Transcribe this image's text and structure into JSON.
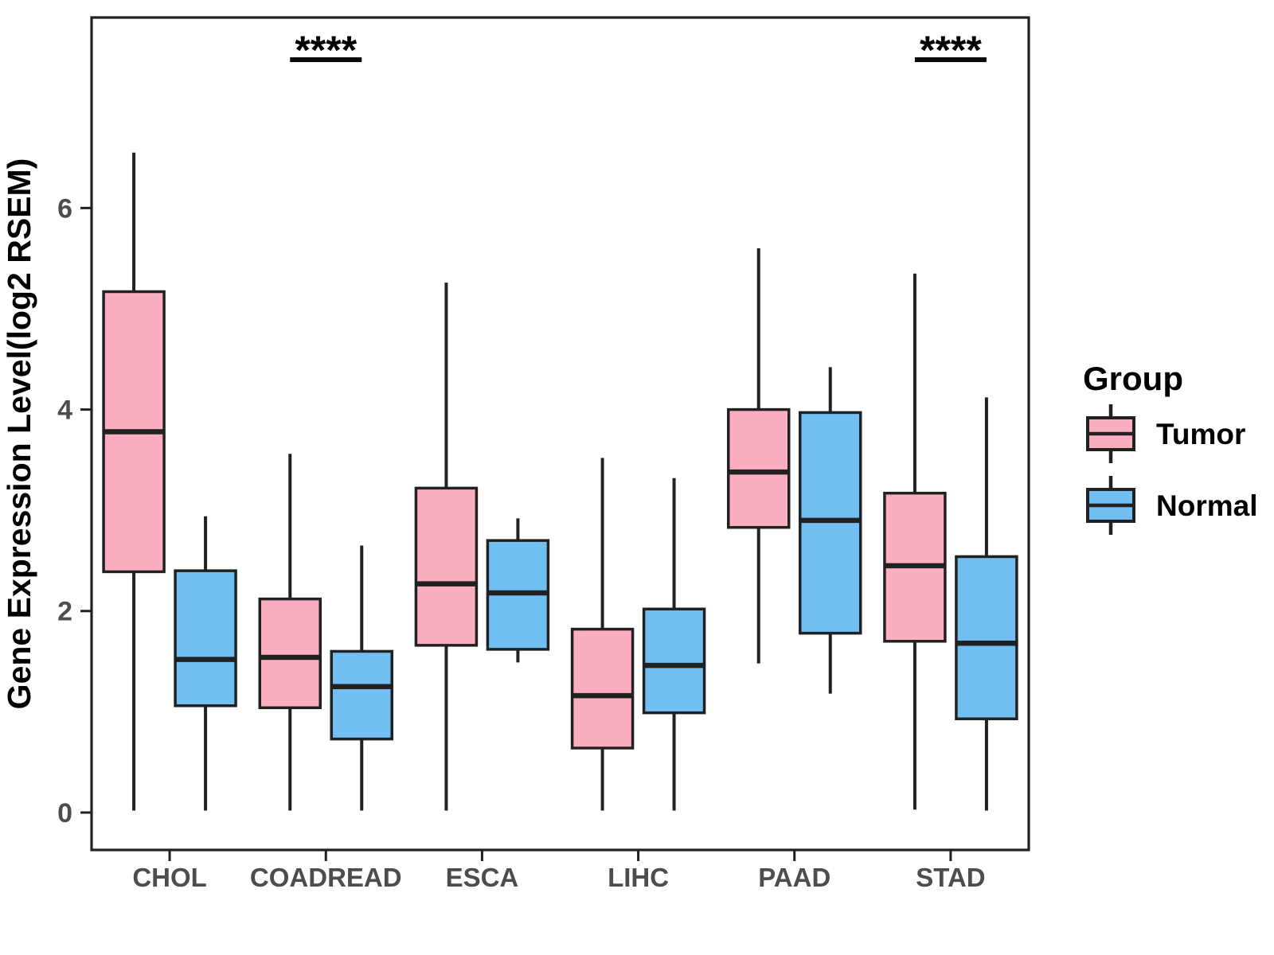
{
  "chart_data": {
    "type": "boxplot",
    "title": "",
    "xlabel": "",
    "ylabel": "Gene Expression Level(log2 RSEM)",
    "y_ticks": [
      0,
      2,
      4,
      6
    ],
    "ylim": [
      -0.4,
      7.9
    ],
    "grid": "off",
    "categories": [
      "CHOL",
      "COADREAD",
      "ESCA",
      "LIHC",
      "PAAD",
      "STAD"
    ],
    "colors": {
      "tumor_fill": "#FAAEC0",
      "normal_fill": "#70BEF2",
      "stroke": "#212121",
      "axis_text": "#4d4d4d",
      "title_text": "#000000"
    },
    "legend": {
      "title": "Group",
      "position": "right",
      "entries": [
        {
          "label": "Tumor",
          "color": "#FAAEC0"
        },
        {
          "label": "Normal",
          "color": "#70BEF2"
        }
      ]
    },
    "series": [
      {
        "name": "Tumor",
        "color": "#FAAEC0",
        "boxes": [
          {
            "category": "CHOL",
            "whisker_low": 0.02,
            "q1": 2.39,
            "median": 3.78,
            "q3": 5.17,
            "whisker_high": 6.55
          },
          {
            "category": "COADREAD",
            "whisker_low": 0.02,
            "q1": 1.04,
            "median": 1.54,
            "q3": 2.12,
            "whisker_high": 3.56
          },
          {
            "category": "ESCA",
            "whisker_low": 0.02,
            "q1": 1.66,
            "median": 2.27,
            "q3": 3.22,
            "whisker_high": 5.26
          },
          {
            "category": "LIHC",
            "whisker_low": 0.02,
            "q1": 0.64,
            "median": 1.16,
            "q3": 1.82,
            "whisker_high": 3.52
          },
          {
            "category": "PAAD",
            "whisker_low": 1.48,
            "q1": 2.83,
            "median": 3.38,
            "q3": 4.0,
            "whisker_high": 5.6
          },
          {
            "category": "STAD",
            "whisker_low": 0.03,
            "q1": 1.7,
            "median": 2.45,
            "q3": 3.17,
            "whisker_high": 5.35
          }
        ]
      },
      {
        "name": "Normal",
        "color": "#70BEF2",
        "boxes": [
          {
            "category": "CHOL",
            "whisker_low": 0.02,
            "q1": 1.06,
            "median": 1.52,
            "q3": 2.4,
            "whisker_high": 2.94
          },
          {
            "category": "COADREAD",
            "whisker_low": 0.02,
            "q1": 0.73,
            "median": 1.25,
            "q3": 1.6,
            "whisker_high": 2.65
          },
          {
            "category": "ESCA",
            "whisker_low": 1.49,
            "q1": 1.62,
            "median": 2.18,
            "q3": 2.7,
            "whisker_high": 2.92
          },
          {
            "category": "LIHC",
            "whisker_low": 0.02,
            "q1": 0.99,
            "median": 1.46,
            "q3": 2.02,
            "whisker_high": 3.32
          },
          {
            "category": "PAAD",
            "whisker_low": 1.18,
            "q1": 1.78,
            "median": 2.9,
            "q3": 3.97,
            "whisker_high": 4.42
          },
          {
            "category": "STAD",
            "whisker_low": 0.02,
            "q1": 0.93,
            "median": 1.68,
            "q3": 2.54,
            "whisker_high": 4.12
          }
        ]
      }
    ],
    "significance": [
      {
        "category": "COADREAD",
        "label": "****"
      },
      {
        "category": "STAD",
        "label": "****"
      }
    ]
  }
}
